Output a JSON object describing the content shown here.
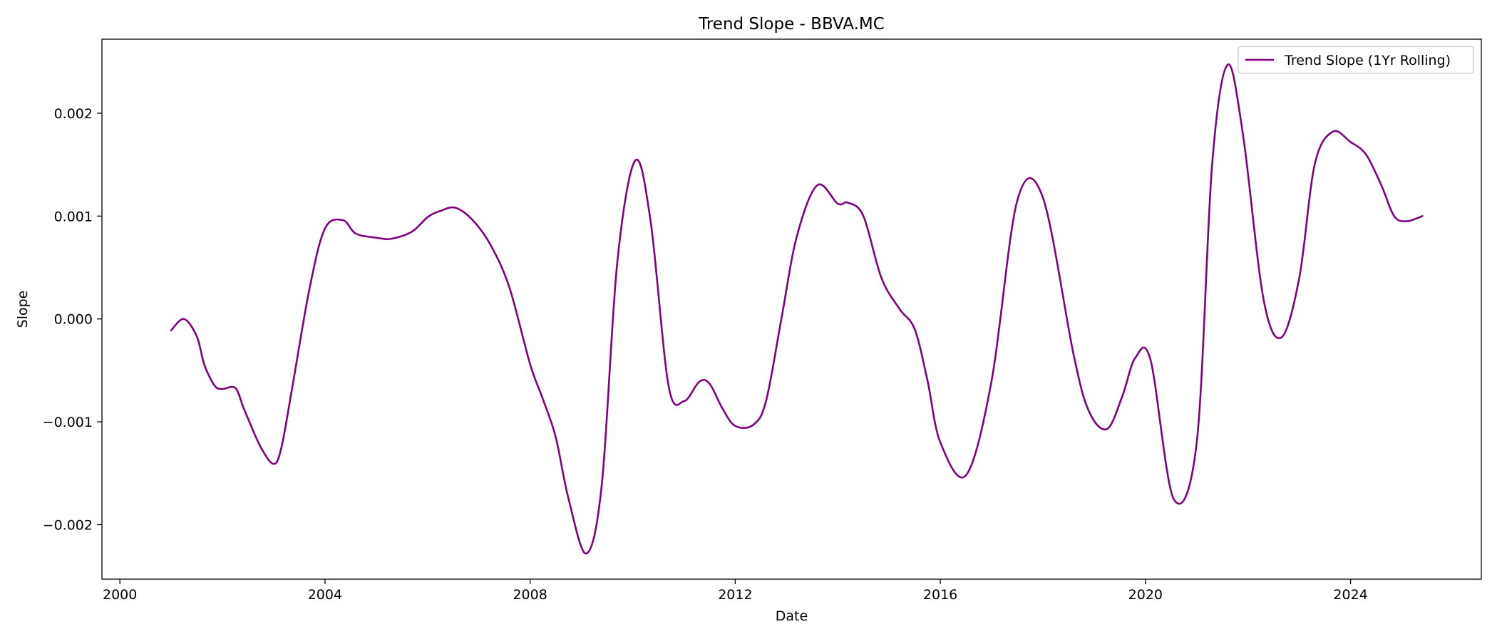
{
  "chart_data": {
    "type": "line",
    "title": "Trend Slope - BBVA.MC",
    "xlabel": "Date",
    "ylabel": "Slope",
    "xlim": [
      1999.65,
      2026.55
    ],
    "ylim": [
      -0.00253,
      0.00272
    ],
    "x_ticks": [
      2000,
      2004,
      2008,
      2012,
      2016,
      2020,
      2024
    ],
    "x_tick_labels": [
      "2000",
      "2004",
      "2008",
      "2012",
      "2016",
      "2020",
      "2024"
    ],
    "y_ticks": [
      -0.002,
      -0.001,
      0.0,
      0.001,
      0.002
    ],
    "y_tick_labels": [
      "−0.002",
      "−0.001",
      "0.000",
      "0.001",
      "0.002"
    ],
    "grid": false,
    "legend_position": "top-right",
    "series": [
      {
        "name": "Trend Slope (1Yr Rolling)",
        "color": "#800080",
        "x": [
          2001.0,
          2001.25,
          2001.5,
          2001.65,
          2001.85,
          2002.0,
          2002.25,
          2002.4,
          2002.5,
          2002.75,
          2003.0,
          2003.15,
          2003.35,
          2003.7,
          2004.0,
          2004.35,
          2004.6,
          2005.0,
          2005.3,
          2005.7,
          2006.0,
          2006.25,
          2006.55,
          2006.9,
          2007.25,
          2007.6,
          2008.0,
          2008.25,
          2008.5,
          2008.75,
          2009.1,
          2009.4,
          2009.7,
          2010.05,
          2010.35,
          2010.7,
          2011.0,
          2011.3,
          2011.5,
          2011.75,
          2012.0,
          2012.35,
          2012.6,
          2012.9,
          2013.2,
          2013.6,
          2014.0,
          2014.2,
          2014.5,
          2014.85,
          2015.2,
          2015.5,
          2015.75,
          2016.0,
          2016.5,
          2017.0,
          2017.5,
          2018.0,
          2018.6,
          2018.9,
          2019.25,
          2019.55,
          2019.8,
          2020.1,
          2020.55,
          2021.0,
          2021.3,
          2021.6,
          2021.9,
          2022.3,
          2022.65,
          2023.0,
          2023.3,
          2023.65,
          2024.0,
          2024.3,
          2024.6,
          2024.85,
          2025.1,
          2025.4
        ],
        "values": [
          -0.00011,
          0.0,
          -0.00017,
          -0.00045,
          -0.00065,
          -0.00068,
          -0.00067,
          -0.00085,
          -0.00097,
          -0.00125,
          -0.00141,
          -0.00125,
          -0.0007,
          0.0003,
          0.00088,
          0.00096,
          0.00083,
          0.00079,
          0.00078,
          0.00085,
          0.00099,
          0.00105,
          0.00108,
          0.00095,
          0.0007,
          0.0003,
          -0.00044,
          -0.00078,
          -0.00115,
          -0.00175,
          -0.00228,
          -0.0016,
          0.00055,
          0.00154,
          0.00095,
          -0.00065,
          -0.0008,
          -0.00061,
          -0.00063,
          -0.00087,
          -0.00104,
          -0.00103,
          -0.0008,
          0.0,
          0.0008,
          0.0013,
          0.00112,
          0.00113,
          0.001,
          0.0004,
          0.0001,
          -0.0001,
          -0.0006,
          -0.0012,
          -0.00152,
          -0.0006,
          0.00115,
          0.00118,
          -0.00035,
          -0.0009,
          -0.00107,
          -0.00075,
          -0.00038,
          -0.0004,
          -0.00175,
          -0.0012,
          0.0015,
          0.00247,
          0.0018,
          0.0002,
          -0.00018,
          0.0004,
          0.0015,
          0.00182,
          0.00172,
          0.0016,
          0.0013,
          0.001,
          0.00095,
          0.001
        ]
      }
    ]
  }
}
